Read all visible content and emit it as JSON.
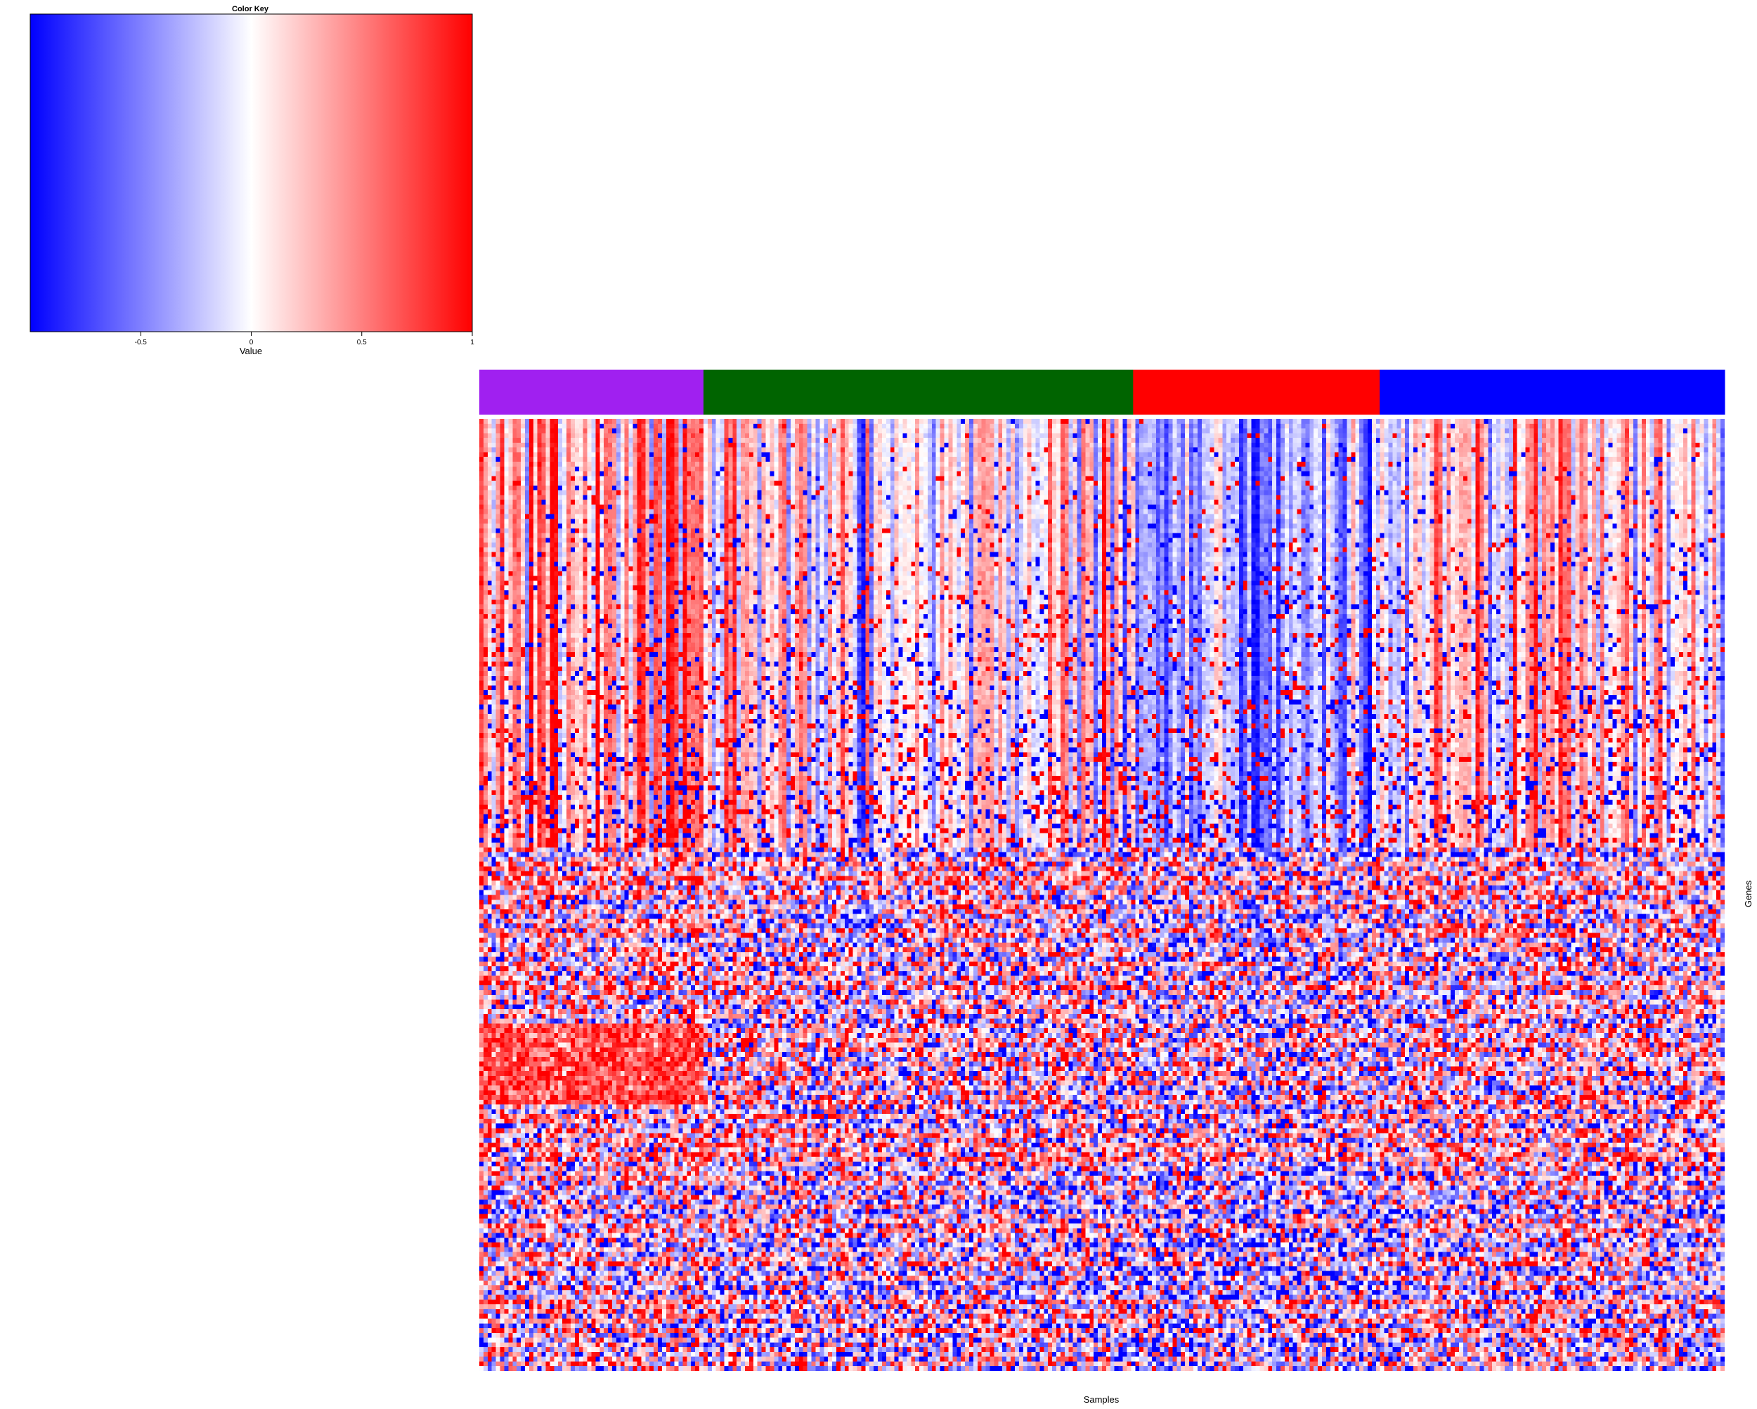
{
  "chart_data": [
    {
      "type": "heatmap",
      "xlabel": "Samples",
      "ylabel": "Genes",
      "value_range": [
        -1,
        1
      ],
      "colormap": [
        "#0000ff",
        "#ffffff",
        "#ff0000"
      ],
      "column_groups": [
        {
          "color": "#a020f0",
          "share": 0.18
        },
        {
          "color": "#006400",
          "share": 0.345
        },
        {
          "color": "#ff0000",
          "share": 0.198
        },
        {
          "color": "#0000ff",
          "share": 0.277
        }
      ],
      "rows": 200,
      "columns": 300
    },
    {
      "type": "colorbar",
      "title": "Color Key",
      "xlabel": "Value",
      "range": [
        -1,
        1
      ],
      "ticks": [
        -0.5,
        0,
        0.5,
        1
      ],
      "tick_labels": [
        "-0.5",
        "0",
        "0.5",
        "1"
      ]
    }
  ]
}
